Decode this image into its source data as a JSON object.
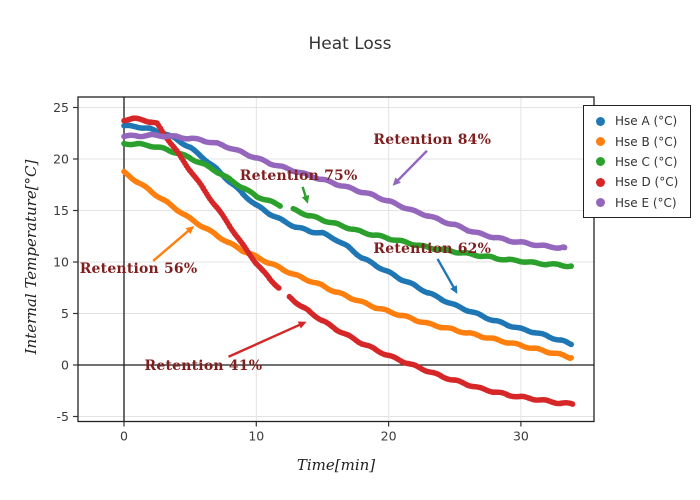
{
  "title": "Heat Loss",
  "axes": {
    "x": {
      "label": "Time[min]",
      "ticks": [
        0,
        10,
        20,
        30
      ],
      "range": [
        -3.5,
        35.5
      ],
      "grid": true
    },
    "y": {
      "label": "Internal Temperature[°C]",
      "ticks": [
        -5,
        0,
        5,
        10,
        15,
        20,
        25
      ],
      "range": [
        -5.5,
        26
      ],
      "grid": true
    }
  },
  "legend": {
    "position": "top-right",
    "items": [
      {
        "label": "Hse A (°C)",
        "color": "#1f77b4"
      },
      {
        "label": "Hse B (°C)",
        "color": "#ff7f0e"
      },
      {
        "label": "Hse C (°C)",
        "color": "#2ca02c"
      },
      {
        "label": "Hse D (°C)",
        "color": "#d62728"
      },
      {
        "label": "Hse E (°C)",
        "color": "#9467bd"
      }
    ]
  },
  "annotation_color": "#7f1f1f",
  "chart_data": {
    "type": "scatter",
    "title": "Heat Loss",
    "xlabel": "Time[min]",
    "ylabel": "Internal Temperature[°C]",
    "xlim": [
      -3.5,
      35.5
    ],
    "ylim": [
      -5.5,
      26
    ],
    "grid": true,
    "legend_position": "top-right",
    "series": [
      {
        "name": "Hse A (°C)",
        "color": "#1f77b4",
        "retention_pct": 62,
        "gaps": [],
        "points": [
          [
            0,
            23.2
          ],
          [
            1,
            23.15
          ],
          [
            2,
            22.9
          ],
          [
            3,
            22.5
          ],
          [
            4,
            21.9
          ],
          [
            5,
            21.1
          ],
          [
            6,
            20.1
          ],
          [
            7,
            19.0
          ],
          [
            8,
            17.8
          ],
          [
            9,
            16.6
          ],
          [
            10,
            15.5
          ],
          [
            11,
            14.7
          ],
          [
            12,
            14.0
          ],
          [
            13,
            13.4
          ],
          [
            14,
            13.0
          ],
          [
            15,
            12.8
          ],
          [
            16,
            12.2
          ],
          [
            17,
            11.4
          ],
          [
            18,
            10.4
          ],
          [
            19,
            9.7
          ],
          [
            20,
            9.0
          ],
          [
            21,
            8.3
          ],
          [
            22,
            7.7
          ],
          [
            23,
            7.0
          ],
          [
            24,
            6.4
          ],
          [
            25,
            5.8
          ],
          [
            26,
            5.3
          ],
          [
            27,
            4.8
          ],
          [
            28,
            4.3
          ],
          [
            29,
            3.9
          ],
          [
            30,
            3.5
          ],
          [
            31,
            3.2
          ],
          [
            32,
            2.8
          ],
          [
            33,
            2.4
          ],
          [
            33.8,
            2.0
          ]
        ]
      },
      {
        "name": "Hse B (°C)",
        "color": "#ff7f0e",
        "retention_pct": 56,
        "gaps": [],
        "points": [
          [
            0,
            18.7
          ],
          [
            1,
            17.8
          ],
          [
            2,
            16.9
          ],
          [
            3,
            16.0
          ],
          [
            4,
            15.1
          ],
          [
            5,
            14.2
          ],
          [
            6,
            13.4
          ],
          [
            7,
            12.6
          ],
          [
            8,
            11.8
          ],
          [
            9,
            11.1
          ],
          [
            10,
            10.5
          ],
          [
            11,
            9.9
          ],
          [
            12,
            9.3
          ],
          [
            13,
            8.7
          ],
          [
            14,
            8.2
          ],
          [
            15,
            7.7
          ],
          [
            16,
            7.1
          ],
          [
            17,
            6.6
          ],
          [
            18,
            6.1
          ],
          [
            19,
            5.6
          ],
          [
            20,
            5.2
          ],
          [
            21,
            4.8
          ],
          [
            22,
            4.4
          ],
          [
            23,
            4.0
          ],
          [
            24,
            3.7
          ],
          [
            25,
            3.4
          ],
          [
            26,
            3.1
          ],
          [
            27,
            2.8
          ],
          [
            28,
            2.5
          ],
          [
            29,
            2.2
          ],
          [
            30,
            1.9
          ],
          [
            31,
            1.6
          ],
          [
            32,
            1.3
          ],
          [
            33,
            1.0
          ],
          [
            33.8,
            0.7
          ]
        ]
      },
      {
        "name": "Hse C (°C)",
        "color": "#2ca02c",
        "retention_pct": 75,
        "gaps": [
          [
            11.8,
            12.8
          ]
        ],
        "points": [
          [
            0,
            21.5
          ],
          [
            1,
            21.45
          ],
          [
            2,
            21.3
          ],
          [
            3,
            21.0
          ],
          [
            4,
            20.6
          ],
          [
            5,
            20.1
          ],
          [
            6,
            19.5
          ],
          [
            7,
            18.8
          ],
          [
            8,
            18.0
          ],
          [
            9,
            17.2
          ],
          [
            10,
            16.4
          ],
          [
            11,
            15.9
          ],
          [
            11.8,
            15.5
          ],
          [
            12.8,
            15.1
          ],
          [
            14,
            14.5
          ],
          [
            15,
            14.1
          ],
          [
            16,
            13.7
          ],
          [
            17,
            13.3
          ],
          [
            18,
            12.9
          ],
          [
            19,
            12.6
          ],
          [
            20,
            12.3
          ],
          [
            21,
            12.0
          ],
          [
            22,
            11.7
          ],
          [
            23,
            11.4
          ],
          [
            24,
            11.2
          ],
          [
            25,
            11.0
          ],
          [
            26,
            10.8
          ],
          [
            27,
            10.6
          ],
          [
            28,
            10.4
          ],
          [
            29,
            10.2
          ],
          [
            30,
            10.1
          ],
          [
            31,
            9.9
          ],
          [
            32,
            9.8
          ],
          [
            33,
            9.7
          ],
          [
            33.8,
            9.6
          ]
        ]
      },
      {
        "name": "Hse D (°C)",
        "color": "#d62728",
        "retention_pct": 41,
        "gaps": [
          [
            11.7,
            12.5
          ]
        ],
        "points": [
          [
            0,
            23.8
          ],
          [
            0.7,
            23.9
          ],
          [
            1.5,
            23.8
          ],
          [
            2,
            23.6
          ],
          [
            2.5,
            23.4
          ],
          [
            3,
            22.5
          ],
          [
            4,
            20.7
          ],
          [
            5,
            18.9
          ],
          [
            6,
            17.1
          ],
          [
            7,
            15.3
          ],
          [
            8,
            13.5
          ],
          [
            9,
            11.6
          ],
          [
            10,
            9.9
          ],
          [
            10.5,
            9.1
          ],
          [
            11,
            8.4
          ],
          [
            11.7,
            7.5
          ],
          [
            12.5,
            6.6
          ],
          [
            13,
            6.1
          ],
          [
            13.5,
            5.6
          ],
          [
            14,
            5.2
          ],
          [
            15,
            4.3
          ],
          [
            16,
            3.5
          ],
          [
            17,
            2.8
          ],
          [
            18,
            2.1
          ],
          [
            19,
            1.5
          ],
          [
            20,
            0.9
          ],
          [
            21,
            0.4
          ],
          [
            22,
            -0.1
          ],
          [
            23,
            -0.6
          ],
          [
            24,
            -1.1
          ],
          [
            25,
            -1.5
          ],
          [
            26,
            -1.9
          ],
          [
            27,
            -2.3
          ],
          [
            28,
            -2.6
          ],
          [
            29,
            -2.9
          ],
          [
            30,
            -3.1
          ],
          [
            31,
            -3.3
          ],
          [
            32,
            -3.5
          ],
          [
            33,
            -3.7
          ],
          [
            33.9,
            -3.8
          ]
        ]
      },
      {
        "name": "Hse E (°C)",
        "color": "#9467bd",
        "retention_pct": 84,
        "gaps": [],
        "points": [
          [
            0,
            22.2
          ],
          [
            1,
            22.25
          ],
          [
            2,
            22.3
          ],
          [
            3,
            22.25
          ],
          [
            4,
            22.15
          ],
          [
            5,
            22.0
          ],
          [
            6,
            21.8
          ],
          [
            7,
            21.5
          ],
          [
            8,
            21.1
          ],
          [
            9,
            20.6
          ],
          [
            10,
            20.1
          ],
          [
            11,
            19.6
          ],
          [
            12,
            19.2
          ],
          [
            13,
            18.8
          ],
          [
            14,
            18.4
          ],
          [
            15,
            18.0
          ],
          [
            16,
            17.6
          ],
          [
            17,
            17.2
          ],
          [
            18,
            16.8
          ],
          [
            19,
            16.4
          ],
          [
            20,
            15.9
          ],
          [
            21,
            15.4
          ],
          [
            22,
            14.9
          ],
          [
            23,
            14.5
          ],
          [
            24,
            14.0
          ],
          [
            25,
            13.6
          ],
          [
            26,
            13.1
          ],
          [
            27,
            12.7
          ],
          [
            28,
            12.4
          ],
          [
            29,
            12.1
          ],
          [
            30,
            11.9
          ],
          [
            31,
            11.7
          ],
          [
            32,
            11.5
          ],
          [
            33,
            11.4
          ],
          [
            33.3,
            11.4
          ]
        ]
      }
    ],
    "annotations": [
      {
        "text": "Retention 84%",
        "series": "Hse E (°C)",
        "arrow_color": "#9467bd",
        "center": [
          23.3,
          21.85
        ],
        "arrow_start": [
          22.9,
          20.8
        ],
        "arrow_tip": [
          20.3,
          17.4
        ]
      },
      {
        "text": "Retention 75%",
        "series": "Hse C (°C)",
        "arrow_color": "#2ca02c",
        "center": [
          13.2,
          18.35
        ],
        "arrow_start": [
          13.5,
          17.3
        ],
        "arrow_tip": [
          13.9,
          15.65
        ]
      },
      {
        "text": "Retention 62%",
        "series": "Hse A (°C)",
        "arrow_color": "#1f77b4",
        "center": [
          23.3,
          11.25
        ],
        "arrow_start": [
          23.7,
          10.3
        ],
        "arrow_tip": [
          25.2,
          6.9
        ]
      },
      {
        "text": "Retention 56%",
        "series": "Hse B (°C)",
        "arrow_color": "#ff7f0e",
        "center": [
          1.1,
          9.3
        ],
        "arrow_start": [
          2.2,
          10.1
        ],
        "arrow_tip": [
          5.3,
          13.5
        ]
      },
      {
        "text": "Retention 41%",
        "series": "Hse D (°C)",
        "arrow_color": "#d62728",
        "center": [
          6.0,
          -0.1
        ],
        "arrow_start": [
          7.9,
          0.8
        ],
        "arrow_tip": [
          13.8,
          4.2
        ]
      }
    ]
  }
}
